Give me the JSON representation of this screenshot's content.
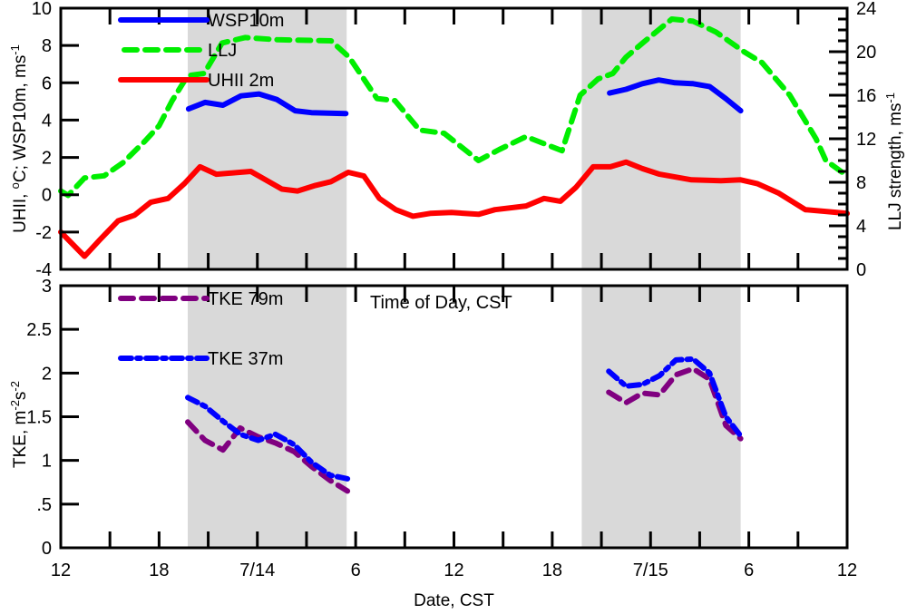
{
  "chart_data": [
    {
      "type": "line",
      "panel": "top",
      "xlabel": "",
      "ylabel": "UHII, °C; WSP10m, ms-1",
      "ylabel_parts": {
        "main": "UHII, ",
        "deg": "o",
        "mid": "C; WSP10m, ms",
        "sup": "-1"
      },
      "ylim": [
        -4,
        10
      ],
      "yticks": [
        -4,
        -2,
        0,
        2,
        4,
        6,
        8,
        10
      ],
      "ytick_labels": [
        "-4",
        "-2",
        "0",
        "2",
        "4",
        "6",
        "8",
        "10"
      ],
      "y2label": "LLJ strength, ms-1",
      "y2label_parts": {
        "main": "LLJ strength, ms",
        "sup": "-1"
      },
      "y2lim": [
        0,
        24
      ],
      "y2ticks": [
        0,
        4,
        8,
        12,
        16,
        20,
        24
      ],
      "y2tick_labels": [
        "0",
        "4",
        "8",
        "12",
        "16",
        "20",
        "24"
      ],
      "x_unit": "hours since 7/13 12:00 CST",
      "xlim": [
        0,
        48
      ],
      "shaded_periods_hours": [
        [
          7.75,
          17.45
        ],
        [
          31.8,
          41.5
        ]
      ],
      "legend": [
        {
          "label": "WSP10m",
          "color": "#0000ff",
          "style": "solid"
        },
        {
          "label": "LLJ",
          "color": "#00ee00",
          "style": "dashed"
        },
        {
          "label": "UHII 2m",
          "color": "#ff0000",
          "style": "solid"
        }
      ],
      "series": [
        {
          "name": "WSP10m",
          "axis": "left",
          "color": "#0000ff",
          "style": "solid",
          "segments": [
            {
              "x": [
                7.8,
                8.8,
                9.9,
                11.0,
                12.1,
                13.2,
                14.3,
                15.3,
                17.4
              ],
              "y": [
                4.6,
                4.95,
                4.8,
                5.3,
                5.4,
                5.1,
                4.5,
                4.4,
                4.35
              ]
            },
            {
              "x": [
                33.5,
                34.5,
                35.5,
                36.5,
                37.5,
                38.6,
                39.6,
                40.6,
                41.5
              ],
              "y": [
                5.45,
                5.65,
                5.95,
                6.15,
                6.0,
                5.95,
                5.8,
                5.15,
                4.5
              ]
            }
          ]
        },
        {
          "name": "LLJ",
          "axis": "right",
          "color": "#00ee00",
          "style": "dashed",
          "segments": [
            {
              "x": [
                0,
                0.45,
                1.45,
                2.65,
                3.8,
                5.15,
                6.0,
                6.8,
                7.75,
                8.75,
                9.85,
                11.25,
                13.2,
                16.5,
                17.6,
                19.3,
                20.4,
                21.9,
                23.4,
                25.5,
                26.75,
                28.4,
                30.6,
                31.7,
                32.8,
                33.7,
                34.5,
                35.6,
                37.3,
                38.6,
                40.0,
                41.7,
                42.8,
                44.5,
                46.1,
                46.7,
                48.0
              ],
              "y": [
                7.2,
                6.8,
                8.4,
                8.6,
                9.8,
                11.8,
                13.2,
                15.5,
                17.8,
                18.0,
                20.8,
                21.3,
                21.1,
                21.0,
                19.5,
                15.7,
                15.5,
                12.8,
                12.5,
                10.0,
                11.0,
                12.2,
                10.9,
                16.0,
                17.5,
                18.0,
                19.5,
                20.9,
                23.0,
                22.8,
                21.8,
                20.0,
                19.0,
                16.0,
                12.0,
                10.0,
                8.6
              ]
            }
          ]
        },
        {
          "name": "UHII 2m",
          "axis": "left",
          "color": "#ff0000",
          "style": "solid",
          "segments": [
            {
              "x": [
                0,
                1.45,
                2.4,
                3.5,
                4.5,
                5.5,
                6.55,
                7.55,
                8.5,
                9.5,
                11.6,
                13.5,
                14.45,
                15.55,
                16.5,
                17.55,
                18.5,
                19.45,
                20.45,
                21.5,
                22.55,
                23.85,
                25.5,
                26.5,
                28.4,
                29.5,
                30.5,
                31.45,
                32.5,
                33.55,
                34.5,
                35.5,
                36.55,
                38.5,
                40.3,
                41.5,
                42.5,
                43.8,
                45.45,
                48.0
              ],
              "y": [
                -2.0,
                -3.3,
                -2.4,
                -1.4,
                -1.1,
                -0.4,
                -0.2,
                0.6,
                1.5,
                1.1,
                1.25,
                0.3,
                0.2,
                0.5,
                0.7,
                1.2,
                1.0,
                -0.2,
                -0.8,
                -1.15,
                -1.0,
                -0.95,
                -1.05,
                -0.8,
                -0.6,
                -0.2,
                -0.35,
                0.4,
                1.5,
                1.5,
                1.75,
                1.4,
                1.1,
                0.8,
                0.75,
                0.8,
                0.6,
                0.1,
                -0.8,
                -1.0
              ]
            }
          ]
        }
      ]
    },
    {
      "type": "line",
      "panel": "bottom",
      "xlabel": "Date, CST",
      "ylabel": "TKE, m-2s-2",
      "ylabel_parts": {
        "main": "TKE, m",
        "sup1": "-2",
        "mid": "s",
        "sup2": "-2"
      },
      "annotation": "Time of Day, CST",
      "ylim": [
        0,
        3
      ],
      "yticks": [
        0,
        0.5,
        1,
        1.5,
        2,
        2.5,
        3
      ],
      "ytick_labels": [
        "0",
        ".5",
        "1",
        "1.5",
        "2",
        "2.5",
        "3"
      ],
      "xlim": [
        0,
        48
      ],
      "xticks": [
        0,
        6,
        12,
        18,
        24,
        30,
        36,
        42,
        48
      ],
      "xtick_labels": [
        "12",
        "18",
        "7/14",
        "6",
        "12",
        "18",
        "7/15",
        "6",
        "12"
      ],
      "minor_xtick_step_hours": 3,
      "shaded_periods_hours": [
        [
          7.75,
          17.45
        ],
        [
          31.8,
          41.5
        ]
      ],
      "legend": [
        {
          "label": "TKE 79m",
          "color": "#800080",
          "style": "dashed"
        },
        {
          "label": "TKE 37m",
          "color": "#0000ff",
          "style": "dashdot"
        }
      ],
      "series": [
        {
          "name": "TKE 79m",
          "color": "#800080",
          "style": "dashed",
          "segments": [
            {
              "x": [
                7.75,
                8.8,
                9.9,
                10.95,
                12.05,
                13.1,
                14.25,
                15.3,
                16.45,
                17.5
              ],
              "y": [
                1.44,
                1.23,
                1.12,
                1.37,
                1.27,
                1.2,
                1.1,
                0.93,
                0.77,
                0.65
              ]
            },
            {
              "x": [
                33.45,
                34.5,
                35.5,
                36.55,
                37.55,
                38.6,
                39.6,
                40.6,
                41.5
              ],
              "y": [
                1.78,
                1.66,
                1.77,
                1.75,
                1.98,
                2.05,
                1.93,
                1.4,
                1.25
              ]
            }
          ]
        },
        {
          "name": "TKE 37m",
          "color": "#0000ff",
          "style": "dashdot",
          "segments": [
            {
              "x": [
                7.75,
                8.8,
                9.9,
                10.95,
                12.05,
                13.1,
                14.25,
                15.3,
                16.45,
                17.5
              ],
              "y": [
                1.72,
                1.62,
                1.45,
                1.3,
                1.23,
                1.3,
                1.18,
                0.98,
                0.83,
                0.79
              ]
            },
            {
              "x": [
                33.45,
                34.5,
                35.5,
                36.55,
                37.55,
                38.6,
                39.6,
                40.6,
                41.5
              ],
              "y": [
                2.02,
                1.85,
                1.87,
                1.97,
                2.15,
                2.16,
                2.0,
                1.5,
                1.28
              ]
            }
          ]
        }
      ]
    }
  ]
}
